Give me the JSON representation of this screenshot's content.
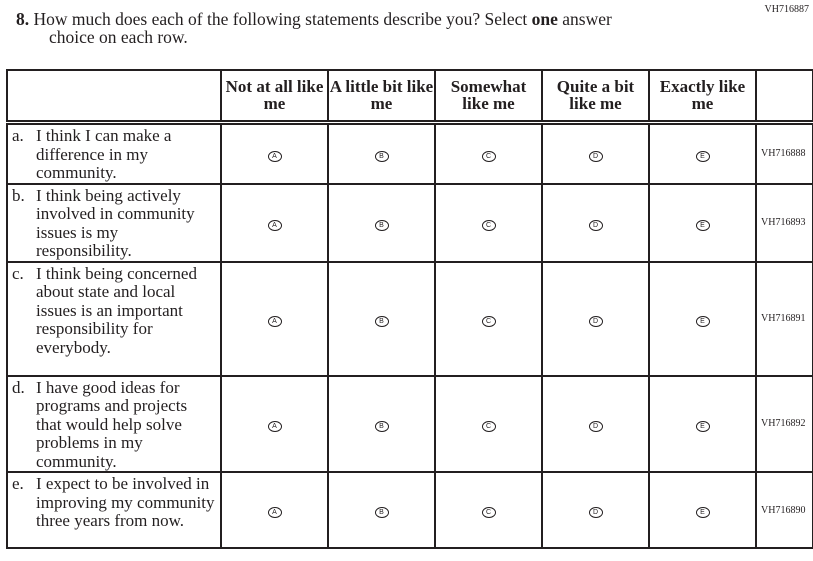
{
  "page_code": "VH716887",
  "question": {
    "number": "8.",
    "text_line1": "How much does each of the following statements describe you? Select ",
    "emphasis": "one",
    "text_line1_end": " answer",
    "text_line2": "choice on each row."
  },
  "columns": [
    "Not at all like me",
    "A little bit like me",
    "Somewhat like me",
    "Quite a bit like me",
    "Exactly like me"
  ],
  "options": [
    "A",
    "B",
    "C",
    "D",
    "E"
  ],
  "rows": [
    {
      "letter": "a.",
      "statement": "I think I can make a difference in my community.",
      "code": "VH716888"
    },
    {
      "letter": "b.",
      "statement": "I think being actively involved in community issues is my responsibility.",
      "code": "VH716893"
    },
    {
      "letter": "c.",
      "statement": "I think being concerned about state and local issues is an important responsibility for everybody.",
      "code": "VH716891"
    },
    {
      "letter": "d.",
      "statement": "I have good ideas for programs and projects that would help solve problems in my community.",
      "code": "VH716892"
    },
    {
      "letter": "e.",
      "statement": "I expect to be involved in improving my community three years from now.",
      "code": "VH716890"
    }
  ]
}
